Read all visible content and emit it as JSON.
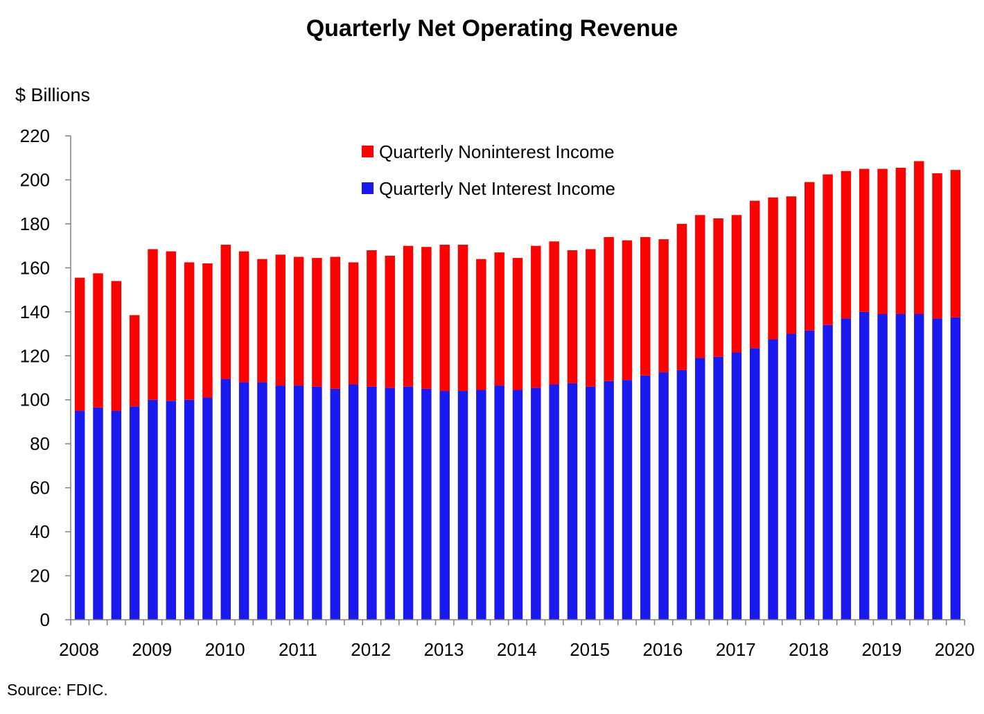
{
  "colors": {
    "noninterest": "#ff0000",
    "net_interest": "#1a1aee",
    "axis": "#808080"
  },
  "source": "Source:  FDIC.",
  "chart_data": {
    "type": "bar",
    "stacked": true,
    "title": "Quarterly Net Operating Revenue",
    "ylabel": "$ Billions",
    "ylim": [
      0,
      220
    ],
    "yticks": [
      0,
      20,
      40,
      60,
      80,
      100,
      120,
      140,
      160,
      180,
      200,
      220
    ],
    "xtick_labels": [
      "2008",
      "2009",
      "2010",
      "2011",
      "2012",
      "2013",
      "2014",
      "2015",
      "2016",
      "2017",
      "2018",
      "2019",
      "2020"
    ],
    "legend_position": "top-center",
    "categories": [
      "2008Q1",
      "2008Q2",
      "2008Q3",
      "2008Q4",
      "2009Q1",
      "2009Q2",
      "2009Q3",
      "2009Q4",
      "2010Q1",
      "2010Q2",
      "2010Q3",
      "2010Q4",
      "2011Q1",
      "2011Q2",
      "2011Q3",
      "2011Q4",
      "2012Q1",
      "2012Q2",
      "2012Q3",
      "2012Q4",
      "2013Q1",
      "2013Q2",
      "2013Q3",
      "2013Q4",
      "2014Q1",
      "2014Q2",
      "2014Q3",
      "2014Q4",
      "2015Q1",
      "2015Q2",
      "2015Q3",
      "2015Q4",
      "2016Q1",
      "2016Q2",
      "2016Q3",
      "2016Q4",
      "2017Q1",
      "2017Q2",
      "2017Q3",
      "2017Q4",
      "2018Q1",
      "2018Q2",
      "2018Q3",
      "2018Q4",
      "2019Q1",
      "2019Q2",
      "2019Q3",
      "2019Q4",
      "2020Q1"
    ],
    "series": [
      {
        "name": "Quarterly Net Interest Income",
        "values": [
          95,
          96.5,
          95,
          97,
          100,
          99.5,
          100,
          101,
          109.5,
          108,
          108,
          106.5,
          106.5,
          106,
          105,
          107,
          106,
          105.5,
          106,
          105,
          104,
          104,
          104.5,
          106.5,
          104.5,
          105.5,
          107,
          107.5,
          106,
          108.5,
          109,
          111,
          112.5,
          113.5,
          119,
          119.5,
          121.5,
          123.5,
          127.5,
          130,
          131.5,
          134,
          137,
          140,
          139,
          139,
          139,
          137,
          137.5
        ]
      },
      {
        "name": "Quarterly Noninterest Income",
        "values": [
          60.5,
          61,
          59,
          41.5,
          68.5,
          68,
          62.5,
          61,
          61,
          59.5,
          56,
          59.5,
          58.5,
          58.5,
          60,
          55.5,
          62,
          60,
          64,
          64.5,
          66.5,
          66.5,
          59.5,
          60.5,
          60,
          64.5,
          65,
          60.5,
          62.5,
          65.5,
          63.5,
          63,
          60.5,
          66.5,
          65,
          63,
          62.5,
          67,
          64.5,
          62.5,
          67.5,
          68.5,
          67,
          65,
          66,
          66.5,
          69.5,
          66,
          67
        ]
      }
    ]
  }
}
